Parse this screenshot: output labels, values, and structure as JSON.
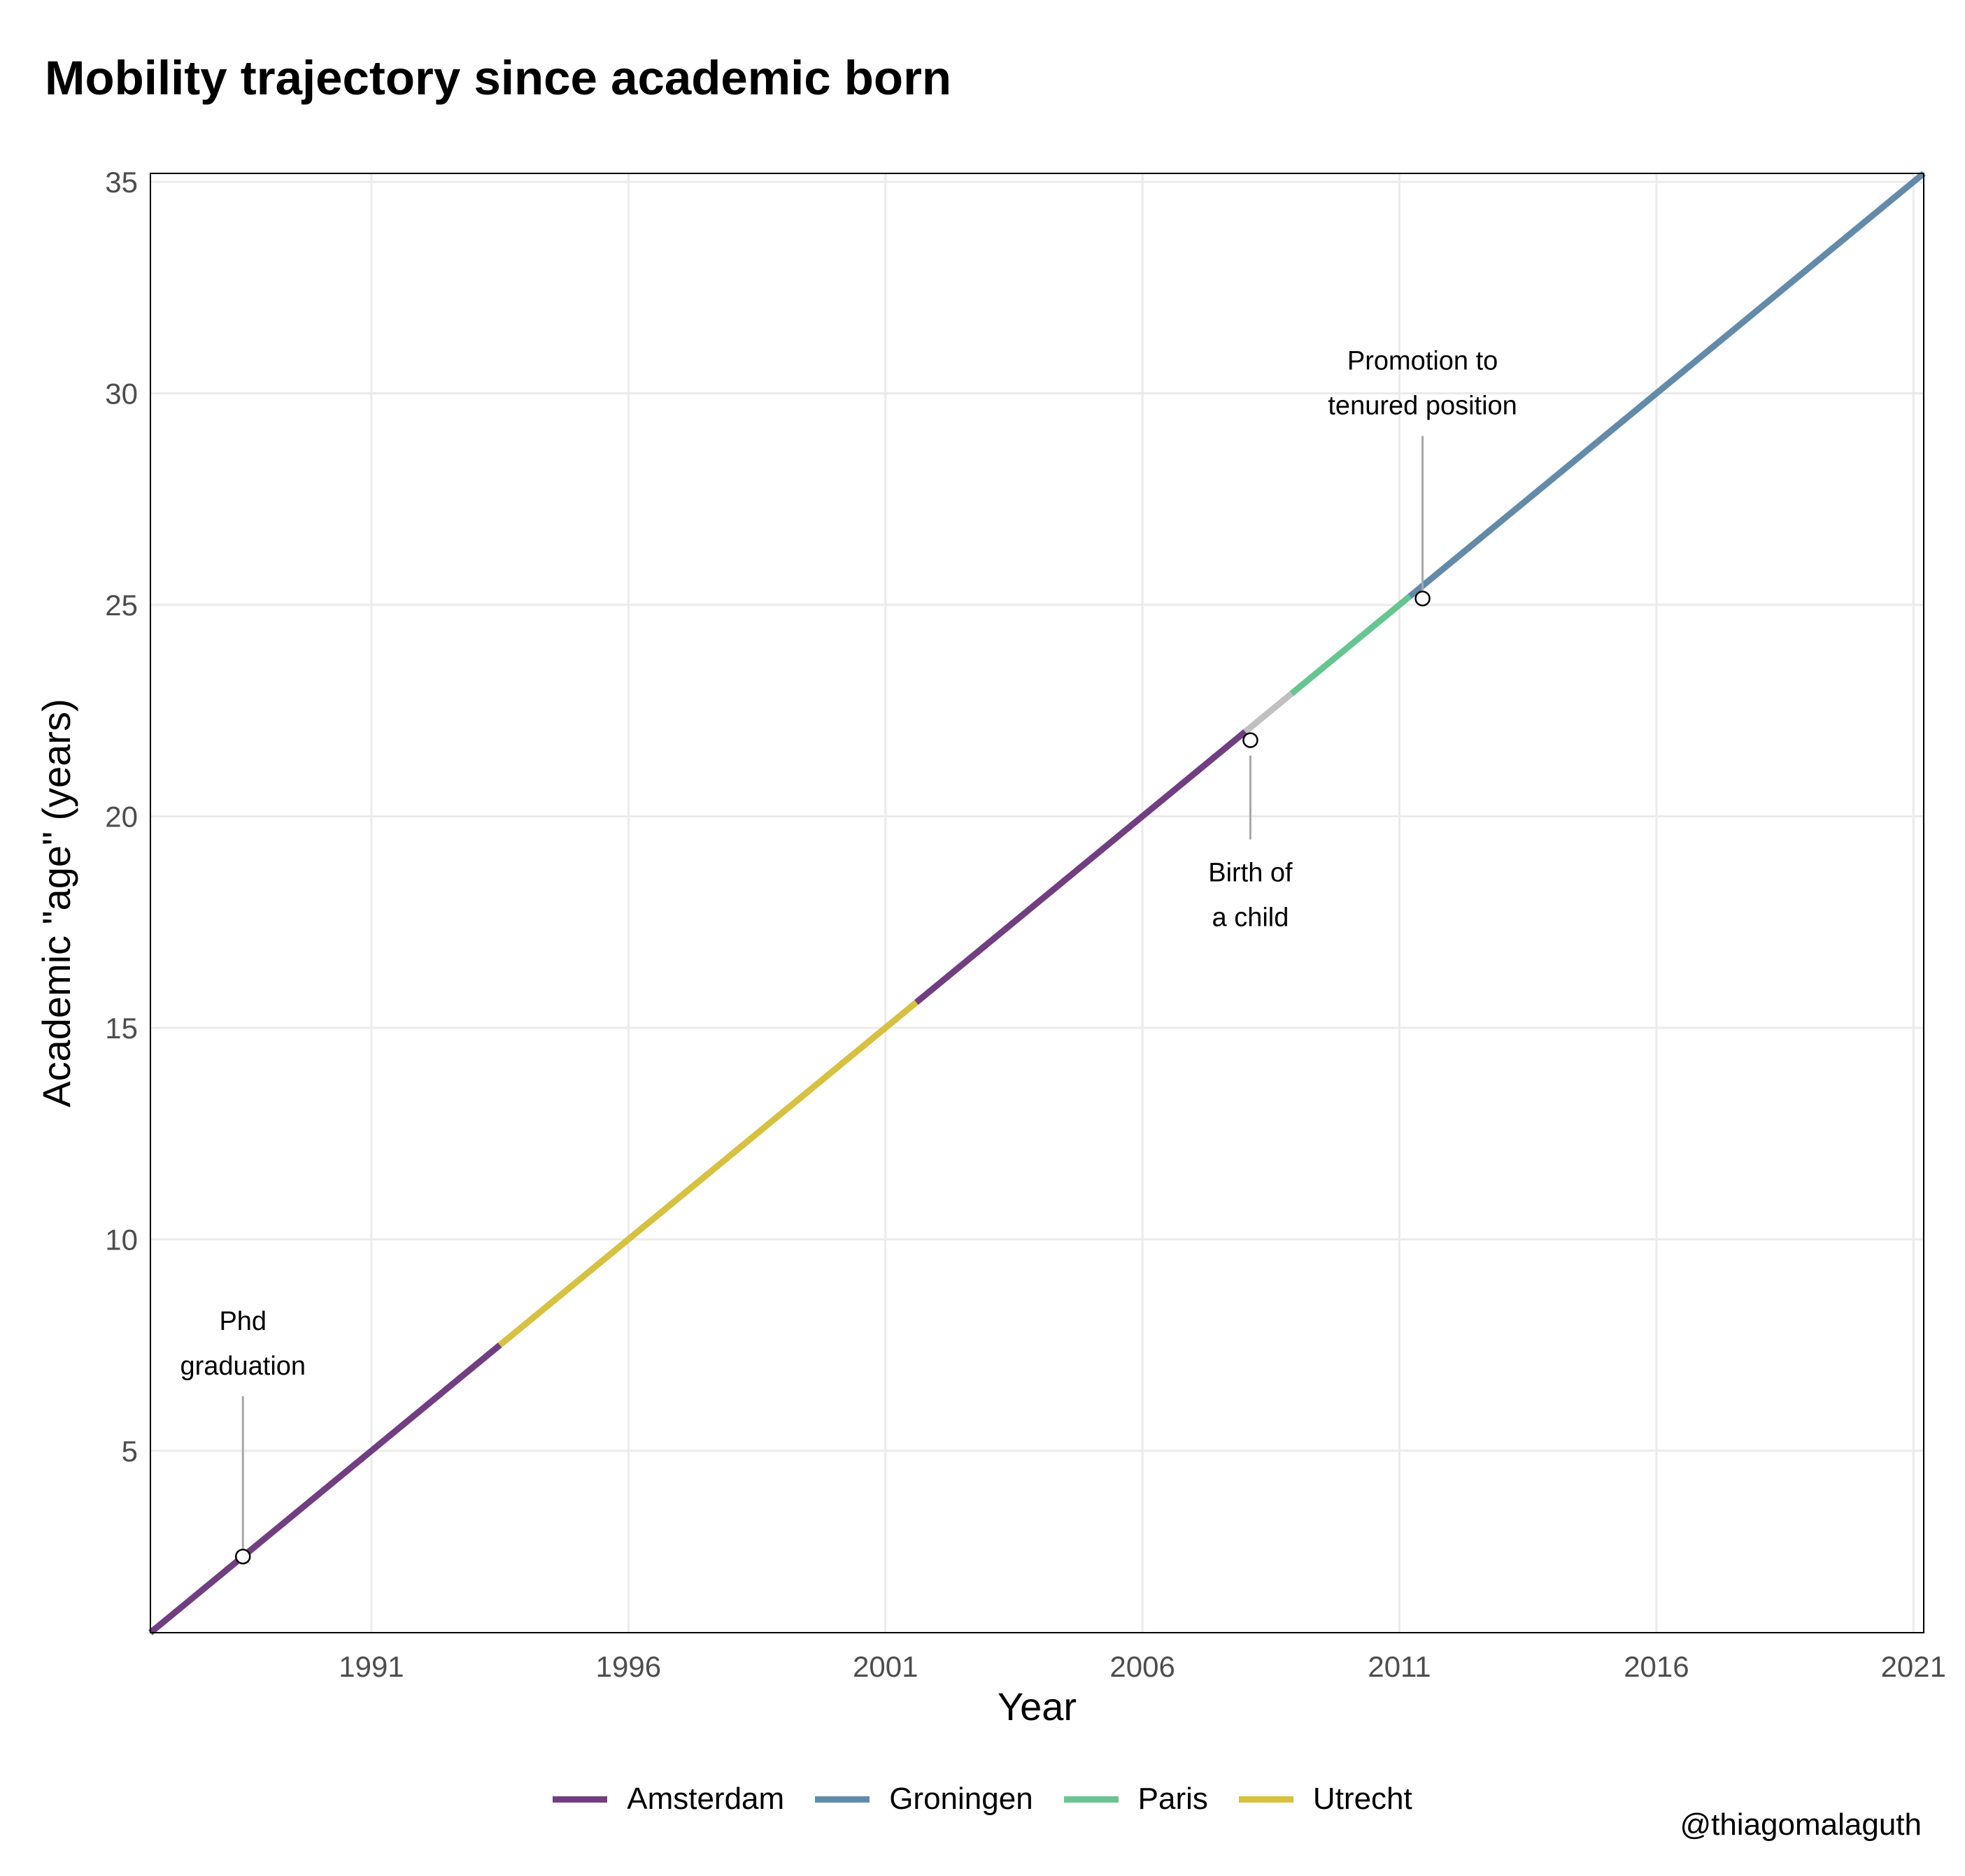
{
  "chart_data": {
    "type": "line",
    "title": "Mobility trajectory since academic born",
    "xlabel": "Year",
    "ylabel": "Academic \"age\" (years)",
    "xlim": [
      1986.7,
      2021.2
    ],
    "ylim": [
      0.7,
      35.2
    ],
    "x_ticks": [
      1991,
      1996,
      2001,
      2006,
      2011,
      2016,
      2021
    ],
    "y_ticks": [
      5,
      10,
      15,
      20,
      25,
      30,
      35
    ],
    "grid": true,
    "legend_position": "bottom",
    "series": [
      {
        "name": "Amsterdam",
        "color": "#713f81",
        "segments": [
          [
            1986.7,
            1993.5
          ],
          [
            2001.6,
            2008.0
          ]
        ]
      },
      {
        "name": "Groningen",
        "color": "#638ba9",
        "segments": [
          [
            2011.2,
            2021.2
          ]
        ]
      },
      {
        "name": "Paris",
        "color": "#67c592",
        "segments": [
          [
            2008.9,
            2011.2
          ]
        ]
      },
      {
        "name": "Utrecht",
        "color": "#d6c141",
        "segments": [
          [
            1993.5,
            2001.6
          ]
        ]
      }
    ],
    "gap_segment": {
      "color": "#c0c0c0",
      "x": [
        2008.0,
        2008.9
      ]
    },
    "line_relation": "y = x - 1986",
    "annotations": [
      {
        "label": "Phd\ngraduation",
        "x": 1988.5,
        "y": 2.5,
        "label_y": 7.2
      },
      {
        "label": "Birth of\na child",
        "x": 2008.1,
        "y": 21.8,
        "label_y": 17.8
      },
      {
        "label": "Promotion to\ntenured position",
        "x": 2011.45,
        "y": 25.15,
        "label_y": 29.9
      }
    ],
    "caption": "@thiagomalaguth"
  }
}
